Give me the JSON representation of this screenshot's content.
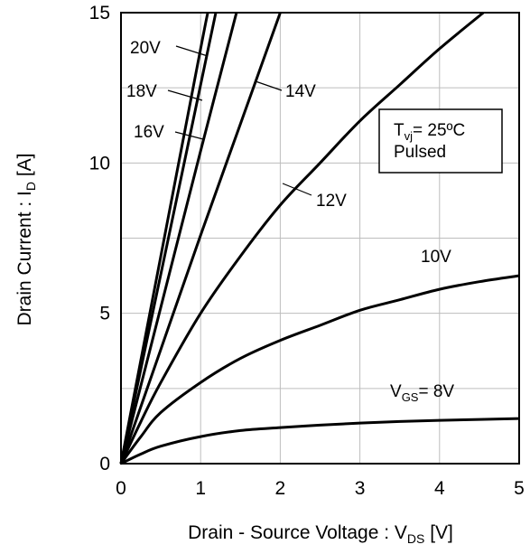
{
  "chart_data": {
    "type": "line",
    "title": "",
    "xlabel": {
      "main": "Drain - Source Voltage : V",
      "sub": "DS",
      "unit": " [V]"
    },
    "ylabel": {
      "main": "Drain Current : I",
      "sub": "D",
      "unit": " [A]"
    },
    "xlim": [
      0,
      5
    ],
    "ylim": [
      0,
      15
    ],
    "x_ticks": [
      "0",
      "1",
      "2",
      "3",
      "4",
      "5"
    ],
    "y_ticks": [
      "0",
      "5",
      "10",
      "15"
    ],
    "grid": true,
    "annotation": {
      "line1_main": "T",
      "line1_sub": "vj",
      "line1_rest": "= 25ºC",
      "line2": "Pulsed"
    },
    "series": [
      {
        "label": "V",
        "label_sub": "GS",
        "label_rest": "= 8V",
        "points": [
          [
            0,
            0
          ],
          [
            0.25,
            0.32
          ],
          [
            0.5,
            0.58
          ],
          [
            1,
            0.9
          ],
          [
            1.5,
            1.1
          ],
          [
            2,
            1.2
          ],
          [
            2.5,
            1.28
          ],
          [
            3,
            1.35
          ],
          [
            3.5,
            1.4
          ],
          [
            4,
            1.44
          ],
          [
            4.5,
            1.47
          ],
          [
            5,
            1.5
          ]
        ]
      },
      {
        "label": "10V",
        "points": [
          [
            0,
            0
          ],
          [
            0.25,
            0.9
          ],
          [
            0.5,
            1.7
          ],
          [
            1,
            2.7
          ],
          [
            1.5,
            3.5
          ],
          [
            2,
            4.1
          ],
          [
            2.5,
            4.6
          ],
          [
            3,
            5.1
          ],
          [
            3.5,
            5.45
          ],
          [
            4,
            5.8
          ],
          [
            4.5,
            6.05
          ],
          [
            5,
            6.25
          ]
        ]
      },
      {
        "label": "12V",
        "points": [
          [
            0,
            0
          ],
          [
            0.25,
            1.4
          ],
          [
            0.5,
            2.7
          ],
          [
            1,
            5.0
          ],
          [
            1.5,
            6.9
          ],
          [
            2,
            8.6
          ],
          [
            2.5,
            10.0
          ],
          [
            3,
            11.4
          ],
          [
            3.5,
            12.6
          ],
          [
            4,
            13.8
          ],
          [
            4.55,
            15
          ]
        ]
      },
      {
        "label": "14V",
        "points": [
          [
            0,
            0
          ],
          [
            0.5,
            3.8
          ],
          [
            1,
            7.6
          ],
          [
            1.5,
            11.3
          ],
          [
            2,
            15
          ]
        ]
      },
      {
        "label": "16V",
        "points": [
          [
            0,
            0
          ],
          [
            0.5,
            5.2
          ],
          [
            1,
            10.4
          ],
          [
            1.45,
            15
          ]
        ]
      },
      {
        "label": "18V",
        "points": [
          [
            0,
            0
          ],
          [
            0.5,
            6.3
          ],
          [
            1,
            12.6
          ],
          [
            1.19,
            15
          ]
        ]
      },
      {
        "label": "20V",
        "points": [
          [
            0,
            0
          ],
          [
            0.5,
            6.9
          ],
          [
            1,
            13.8
          ],
          [
            1.09,
            15
          ]
        ]
      }
    ]
  }
}
